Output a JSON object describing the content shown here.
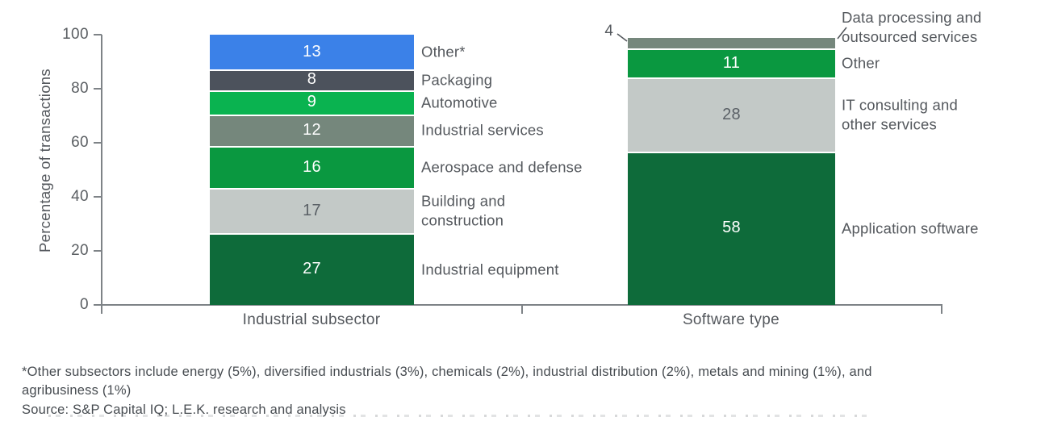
{
  "chart_data": {
    "type": "bar",
    "subtype": "stacked-vertical",
    "title": "",
    "ylabel": "Percentage of transactions",
    "xlabel": "",
    "ylim": [
      0,
      100
    ],
    "yticks": [
      0,
      20,
      40,
      60,
      80,
      100
    ],
    "grid": false,
    "legend": "none (segments labeled directly beside bars)",
    "groups": [
      {
        "category": "Industrial subsector",
        "segments": [
          {
            "label": "Other*",
            "label_lines": [
              "Other*"
            ],
            "value": 13,
            "color": "#3B81E8",
            "value_color": "#ffffff"
          },
          {
            "label": "Packaging",
            "label_lines": [
              "Packaging"
            ],
            "value": 8,
            "color": "#4C525C",
            "value_color": "#ffffff"
          },
          {
            "label": "Automotive",
            "label_lines": [
              "Automotive"
            ],
            "value": 9,
            "color": "#0AB350",
            "value_color": "#ffffff"
          },
          {
            "label": "Industrial services",
            "label_lines": [
              "Industrial services"
            ],
            "value": 12,
            "color": "#75877C",
            "value_color": "#ffffff"
          },
          {
            "label": "Aerospace and defense",
            "label_lines": [
              "Aerospace and defense"
            ],
            "value": 16,
            "color": "#0A9840",
            "value_color": "#ffffff"
          },
          {
            "label": "Building and construction",
            "label_lines": [
              "Building and",
              "construction"
            ],
            "value": 17,
            "color": "#C3C9C7",
            "value_color": "#5a6066"
          },
          {
            "label": "Industrial equipment",
            "label_lines": [
              "Industrial equipment"
            ],
            "value": 27,
            "color": "#0E6B3A",
            "value_color": "#ffffff"
          }
        ]
      },
      {
        "category": "Software type",
        "segments": [
          {
            "label": "Data processing and outsourced services",
            "label_lines": [
              "Data processing and",
              "outsourced services"
            ],
            "value": 4,
            "color": "#75877C",
            "value_color": "#54585d",
            "value_outside": true,
            "label_above": true
          },
          {
            "label": "Other",
            "label_lines": [
              "Other"
            ],
            "value": 11,
            "color": "#0A9840",
            "value_color": "#ffffff"
          },
          {
            "label": "IT consulting and other services",
            "label_lines": [
              "IT consulting and",
              "other services"
            ],
            "value": 28,
            "color": "#C3C9C7",
            "value_color": "#5a6066"
          },
          {
            "label": "Application software",
            "label_lines": [
              "Application software"
            ],
            "value": 58,
            "color": "#0E6B3A",
            "value_color": "#ffffff"
          }
        ]
      }
    ]
  },
  "footnote": {
    "line1": "*Other subsectors include energy (5%), diversified industrials (3%), chemicals (2%), industrial distribution (2%), metals and mining (1%), and",
    "line2": "agribusiness (1%)",
    "source": "Source: S&P Capital IQ; L.E.K. research and analysis"
  }
}
